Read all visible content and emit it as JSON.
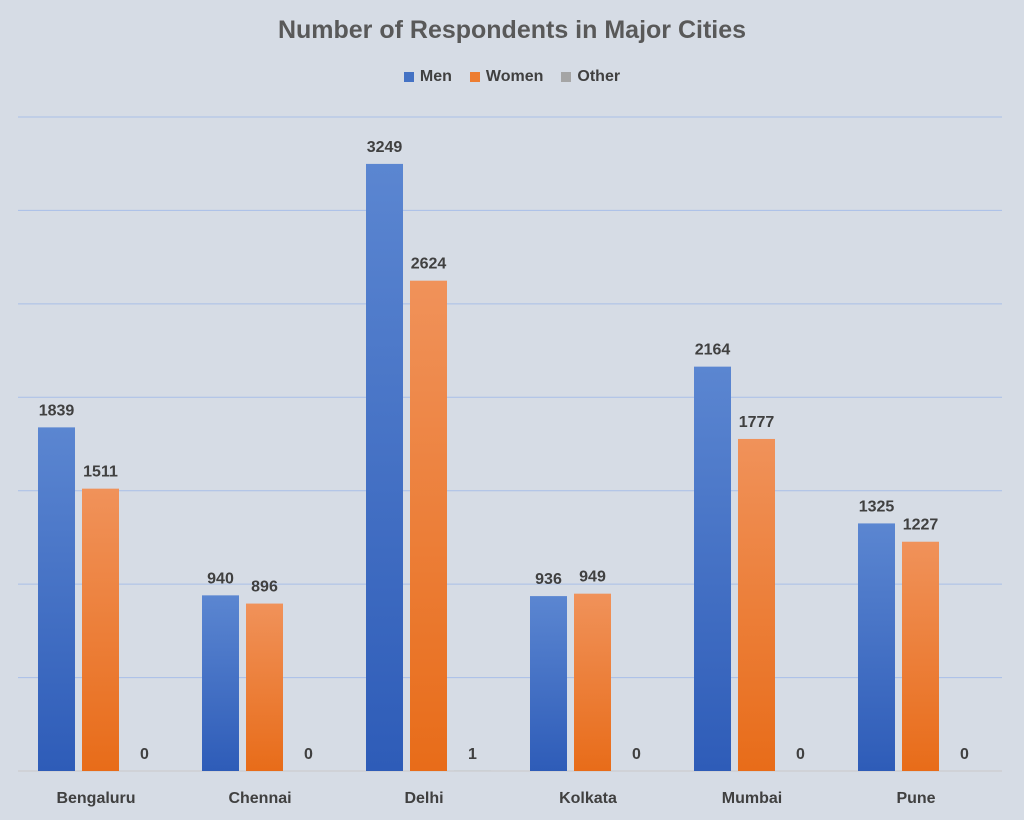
{
  "chart_data": {
    "type": "bar",
    "title": "Number of Respondents in Major Cities",
    "categories": [
      "Bengaluru",
      "Chennai",
      "Delhi",
      "Kolkata",
      "Mumbai",
      "Pune"
    ],
    "series": [
      {
        "name": "Men",
        "values": [
          1839,
          940,
          3249,
          936,
          2164,
          1325
        ],
        "color": "#4472c4"
      },
      {
        "name": "Women",
        "values": [
          1511,
          896,
          2624,
          949,
          1777,
          1227
        ],
        "color": "#ed7d31"
      },
      {
        "name": "Other",
        "values": [
          0,
          0,
          1,
          0,
          0,
          0
        ],
        "color": "#a5a5a5"
      }
    ],
    "ylim": [
      0,
      3500
    ],
    "y_gridlines": [
      500,
      1000,
      1500,
      2000,
      2500,
      3000,
      3500
    ],
    "grid": true,
    "legend_position": "top",
    "y_tick_labels_shown": false,
    "data_labels": true
  }
}
